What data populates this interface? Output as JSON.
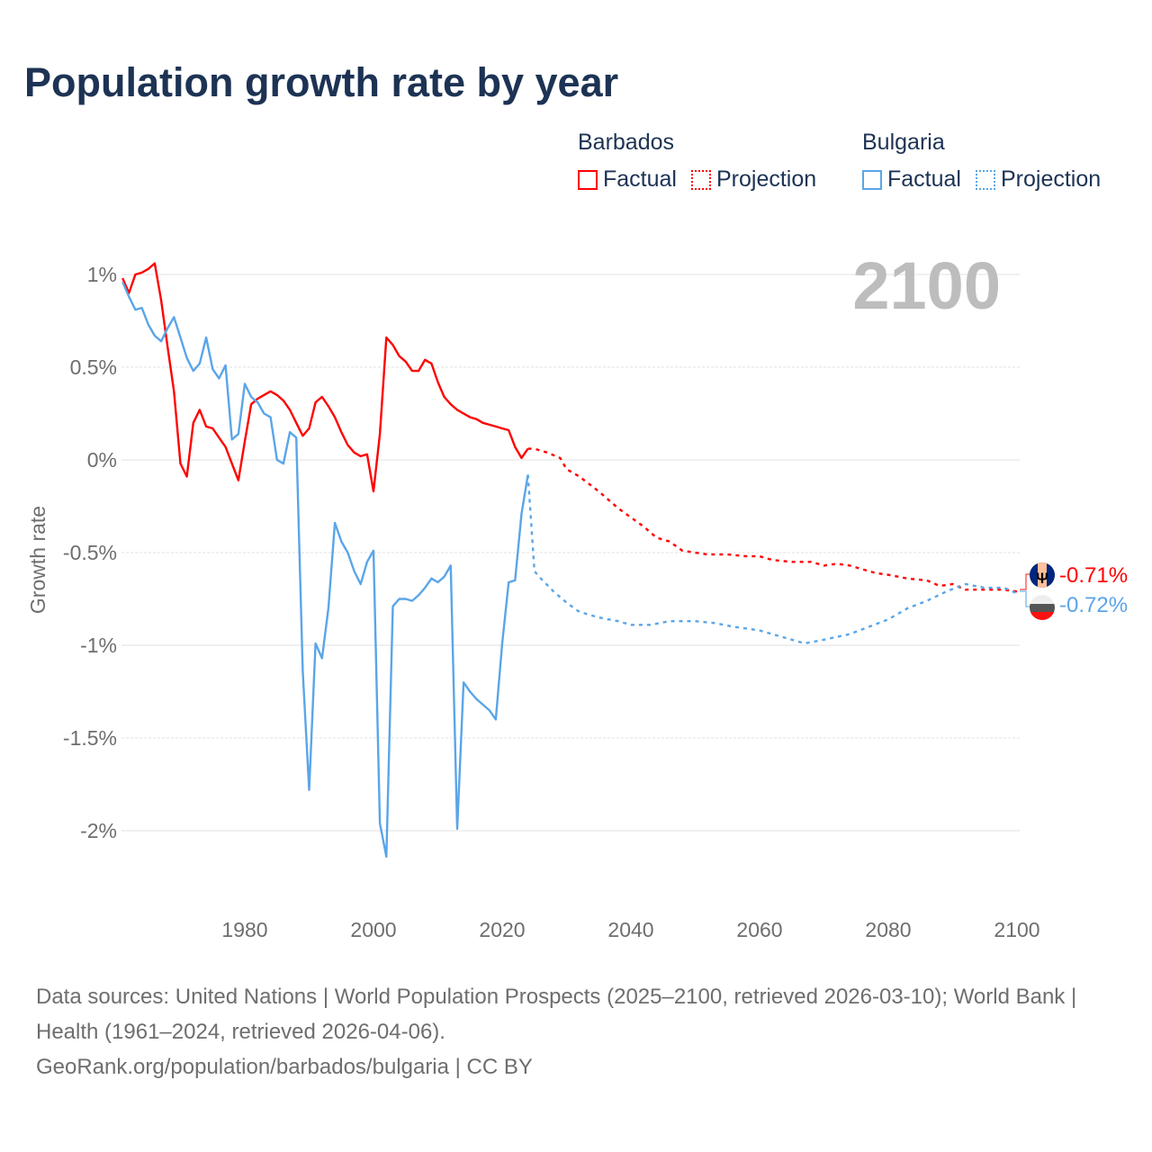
{
  "title": "Population growth rate by year",
  "legend": [
    {
      "country": "Barbados",
      "factual": "Factual",
      "projection": "Projection",
      "color": "#ff0000"
    },
    {
      "country": "Bulgaria",
      "factual": "Factual",
      "projection": "Projection",
      "color": "#5aa5e8"
    }
  ],
  "year_label": "2100",
  "end_labels": {
    "barbados": "-0.71%",
    "bulgaria": "-0.72%"
  },
  "footer": {
    "sources": "Data sources: United Nations | World Population Prospects (2025–2100, retrieved 2026-03-10); World Bank | Health (1961–2024, retrieved 2026-04-06).",
    "attribution": "GeoRank.org/population/barbados/bulgaria | CC BY"
  },
  "chart_data": {
    "type": "line",
    "title": "Population growth rate by year",
    "xlabel": "",
    "ylabel": "Growth rate",
    "xlim": [
      1961,
      2100
    ],
    "ylim": [
      -2.3,
      1.2
    ],
    "xticks": [
      1980,
      2000,
      2020,
      2040,
      2060,
      2080,
      2100
    ],
    "xtick_labels": [
      "1980",
      "2000",
      "2020",
      "2040",
      "2060",
      "2080",
      "2100"
    ],
    "yticks": [
      1,
      0.5,
      0,
      -0.5,
      -1,
      -1.5,
      -2
    ],
    "ytick_labels": [
      "1%",
      "0.5%",
      "0%",
      "-0.5%",
      "-1%",
      "-1.5%",
      "-2%"
    ],
    "grid": true,
    "legend_placement": "top-right",
    "series": [
      {
        "name": "Barbados Factual",
        "color": "#ff0000",
        "dashed": false,
        "x": [
          1961,
          1962,
          1963,
          1964,
          1965,
          1966,
          1967,
          1968,
          1969,
          1970,
          1971,
          1972,
          1973,
          1974,
          1975,
          1976,
          1977,
          1978,
          1979,
          1980,
          1981,
          1982,
          1983,
          1984,
          1985,
          1986,
          1987,
          1988,
          1989,
          1990,
          1991,
          1992,
          1993,
          1994,
          1995,
          1996,
          1997,
          1998,
          1999,
          2000,
          2001,
          2002,
          2003,
          2004,
          2005,
          2006,
          2007,
          2008,
          2009,
          2010,
          2011,
          2012,
          2013,
          2014,
          2015,
          2016,
          2017,
          2018,
          2019,
          2020,
          2021,
          2022,
          2023,
          2024
        ],
        "y": [
          0.98,
          0.9,
          1.0,
          1.01,
          1.03,
          1.06,
          0.86,
          0.61,
          0.37,
          -0.02,
          -0.09,
          0.2,
          0.27,
          0.18,
          0.17,
          0.12,
          0.07,
          -0.02,
          -0.11,
          0.1,
          0.3,
          0.33,
          0.35,
          0.37,
          0.35,
          0.32,
          0.27,
          0.2,
          0.13,
          0.17,
          0.31,
          0.34,
          0.29,
          0.23,
          0.15,
          0.08,
          0.04,
          0.02,
          0.03,
          -0.17,
          0.14,
          0.66,
          0.62,
          0.56,
          0.53,
          0.48,
          0.48,
          0.54,
          0.52,
          0.42,
          0.34,
          0.3,
          0.27,
          0.25,
          0.23,
          0.22,
          0.2,
          0.19,
          0.18,
          0.17,
          0.16,
          0.07,
          0.01,
          0.06
        ]
      },
      {
        "name": "Barbados Projection",
        "color": "#ff0000",
        "dashed": true,
        "x": [
          2024,
          2025,
          2027,
          2029,
          2030,
          2032,
          2035,
          2038,
          2040,
          2042,
          2044,
          2046,
          2048,
          2050,
          2052,
          2055,
          2058,
          2060,
          2062,
          2065,
          2068,
          2070,
          2072,
          2074,
          2076,
          2078,
          2080,
          2083,
          2086,
          2088,
          2090,
          2092,
          2095,
          2098,
          2100
        ],
        "y": [
          0.06,
          0.06,
          0.04,
          0.01,
          -0.05,
          -0.09,
          -0.17,
          -0.26,
          -0.31,
          -0.36,
          -0.42,
          -0.44,
          -0.49,
          -0.5,
          -0.51,
          -0.51,
          -0.52,
          -0.52,
          -0.54,
          -0.55,
          -0.55,
          -0.57,
          -0.56,
          -0.57,
          -0.59,
          -0.61,
          -0.62,
          -0.64,
          -0.65,
          -0.68,
          -0.67,
          -0.7,
          -0.7,
          -0.7,
          -0.71
        ]
      },
      {
        "name": "Bulgaria Factual",
        "color": "#5aa5e8",
        "dashed": false,
        "x": [
          1961,
          1962,
          1963,
          1964,
          1965,
          1966,
          1967,
          1968,
          1969,
          1970,
          1971,
          1972,
          1973,
          1974,
          1975,
          1976,
          1977,
          1978,
          1979,
          1980,
          1981,
          1982,
          1983,
          1984,
          1985,
          1986,
          1987,
          1988,
          1989,
          1990,
          1991,
          1992,
          1993,
          1994,
          1995,
          1996,
          1997,
          1998,
          1999,
          2000,
          2001,
          2002,
          2003,
          2004,
          2005,
          2006,
          2007,
          2008,
          2009,
          2010,
          2011,
          2012,
          2013,
          2014,
          2015,
          2016,
          2017,
          2018,
          2019,
          2020,
          2021,
          2022,
          2023,
          2024
        ],
        "y": [
          0.96,
          0.88,
          0.81,
          0.82,
          0.73,
          0.67,
          0.64,
          0.71,
          0.77,
          0.66,
          0.55,
          0.48,
          0.52,
          0.66,
          0.49,
          0.44,
          0.51,
          0.11,
          0.14,
          0.41,
          0.34,
          0.31,
          0.25,
          0.23,
          0.0,
          -0.02,
          0.15,
          0.12,
          -1.14,
          -1.78,
          -0.99,
          -1.07,
          -0.8,
          -0.34,
          -0.44,
          -0.5,
          -0.6,
          -0.67,
          -0.55,
          -0.49,
          -1.96,
          -2.14,
          -0.79,
          -0.75,
          -0.75,
          -0.76,
          -0.73,
          -0.69,
          -0.64,
          -0.66,
          -0.63,
          -0.57,
          -1.99,
          -1.2,
          -1.25,
          -1.29,
          -1.32,
          -1.35,
          -1.4,
          -0.99,
          -0.66,
          -0.65,
          -0.29,
          -0.08
        ]
      },
      {
        "name": "Bulgaria Projection",
        "color": "#5aa5e8",
        "dashed": true,
        "x": [
          2024,
          2025,
          2026,
          2028,
          2030,
          2032,
          2035,
          2038,
          2040,
          2043,
          2046,
          2050,
          2053,
          2056,
          2060,
          2063,
          2067,
          2070,
          2074,
          2077,
          2080,
          2083,
          2086,
          2089,
          2092,
          2095,
          2098,
          2100
        ],
        "y": [
          -0.08,
          -0.6,
          -0.64,
          -0.71,
          -0.77,
          -0.82,
          -0.85,
          -0.87,
          -0.89,
          -0.89,
          -0.87,
          -0.87,
          -0.88,
          -0.9,
          -0.92,
          -0.95,
          -0.99,
          -0.97,
          -0.94,
          -0.9,
          -0.86,
          -0.8,
          -0.76,
          -0.71,
          -0.67,
          -0.69,
          -0.69,
          -0.72
        ]
      }
    ]
  }
}
